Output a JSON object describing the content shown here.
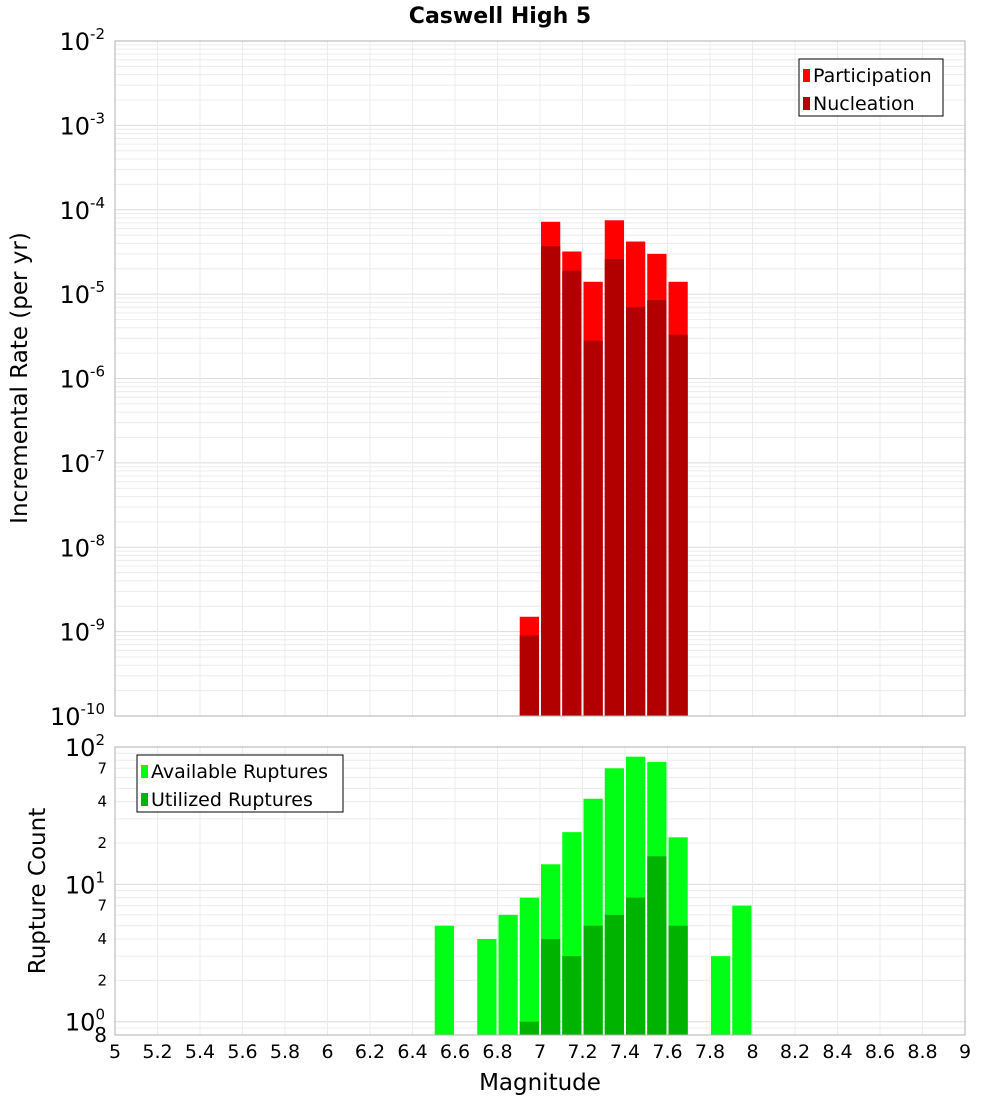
{
  "chart_data": [
    {
      "type": "bar",
      "title": "Caswell High 5",
      "xlabel": "Magnitude",
      "ylabel": "Incremental Rate (per yr)",
      "yscale": "log",
      "xlim": [
        5,
        9
      ],
      "ylim": [
        1e-10,
        0.01
      ],
      "grid": true,
      "legend_placement": "top-right",
      "bin_width": 0.1,
      "x": [
        6.95,
        7.05,
        7.15,
        7.25,
        7.35,
        7.45,
        7.55,
        7.65
      ],
      "series": [
        {
          "name": "Participation",
          "color": "#ff0000",
          "values": [
            1.5e-09,
            7.2e-05,
            3.2e-05,
            1.4e-05,
            7.5e-05,
            4.2e-05,
            3e-05,
            1.4e-05
          ]
        },
        {
          "name": "Nucleation",
          "color": "#b20000",
          "values": [
            9e-10,
            3.7e-05,
            1.9e-05,
            2.8e-06,
            2.6e-05,
            7e-06,
            8.5e-06,
            3.3e-06
          ]
        }
      ],
      "y_tick_labels": [
        {
          "base": "10",
          "exp": "-10"
        },
        {
          "base": "10",
          "exp": "-9"
        },
        {
          "base": "10",
          "exp": "-8"
        },
        {
          "base": "10",
          "exp": "-7"
        },
        {
          "base": "10",
          "exp": "-6"
        },
        {
          "base": "10",
          "exp": "-5"
        },
        {
          "base": "10",
          "exp": "-4"
        },
        {
          "base": "10",
          "exp": "-3"
        },
        {
          "base": "10",
          "exp": "-2"
        }
      ]
    },
    {
      "type": "bar",
      "title": "",
      "xlabel": "Magnitude",
      "ylabel": "Rupture Count",
      "yscale": "log",
      "xlim": [
        5,
        9
      ],
      "ylim": [
        0.8,
        100
      ],
      "grid": true,
      "legend_placement": "top-left",
      "bin_width": 0.1,
      "x": [
        6.55,
        6.75,
        6.85,
        6.95,
        7.05,
        7.15,
        7.25,
        7.35,
        7.45,
        7.55,
        7.65,
        7.85,
        7.95
      ],
      "series": [
        {
          "name": "Available Ruptures",
          "color": "#00ff14",
          "values": [
            5,
            4,
            6,
            8,
            14,
            24,
            42,
            70,
            85,
            78,
            22,
            3,
            7
          ]
        },
        {
          "name": "Utilized Ruptures",
          "color": "#00b300",
          "values": [
            0,
            0,
            0,
            1,
            4,
            3,
            5,
            6,
            8,
            16,
            5,
            0,
            0
          ]
        }
      ],
      "y_tick_labels": [
        {
          "base": "10",
          "exp": "0"
        },
        {
          "base": "10",
          "exp": "1"
        },
        {
          "base": "10",
          "exp": "2"
        }
      ],
      "y_minor_tick_labels": [
        "2",
        "4",
        "7",
        "2",
        "4",
        "7"
      ],
      "y_bottom_label": "8",
      "x_tick_labels": [
        "5",
        "5.2",
        "5.4",
        "5.6",
        "5.8",
        "6",
        "6.2",
        "6.4",
        "6.6",
        "6.8",
        "7",
        "7.2",
        "7.4",
        "7.6",
        "7.8",
        "8",
        "8.2",
        "8.4",
        "8.6",
        "8.8",
        "9"
      ]
    }
  ]
}
